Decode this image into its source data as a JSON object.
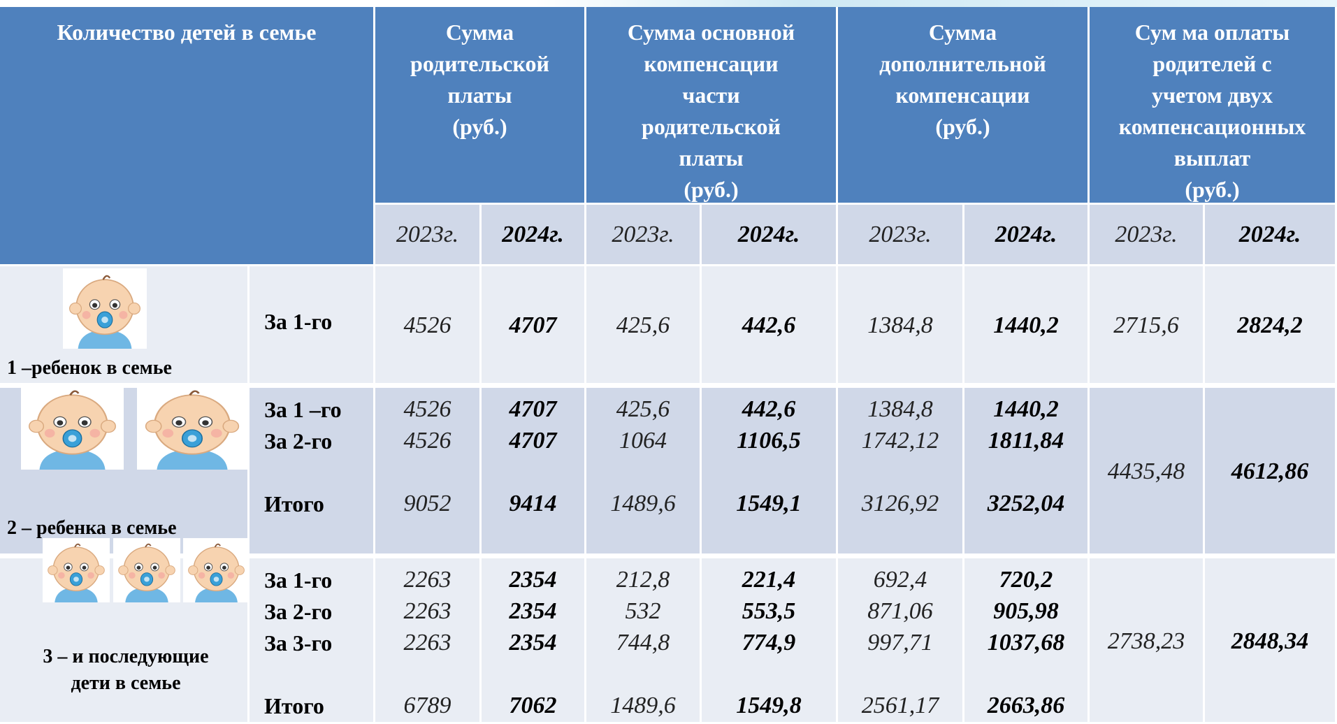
{
  "header": {
    "group_label": "Количество детей в семье",
    "columns": [
      "Сумма\nродительской\nплаты\n(руб.)",
      "Сумма основной\nкомпенсации\nчасти\nродительской\nплаты\n(руб.)",
      "Сумма\nдополнительной\nкомпенсации\n(руб.)",
      "Сум ма оплаты\nродителей с\nучетом двух\nкомпенсационных\nвыплат\n(руб.)"
    ],
    "years": [
      "2023г.",
      "2024г.",
      "2023г.",
      "2024г.",
      "2023г.",
      "2024г.",
      "2023г.",
      "2024г."
    ]
  },
  "groups": [
    {
      "label": "1 –ребенок в семье",
      "rows": [
        {
          "label": "За 1-го",
          "values": [
            "4526",
            "4707",
            "425,6",
            "442,6",
            "1384,8",
            "1440,2"
          ]
        }
      ],
      "totals": [
        "2715,6",
        "2824,2"
      ]
    },
    {
      "label": "2 – ребенка в семье",
      "rows": [
        {
          "label": "За 1 –го",
          "values": [
            "4526",
            "4707",
            "425,6",
            "442,6",
            "1384,8",
            "1440,2"
          ]
        },
        {
          "label": "За 2-го",
          "values": [
            "4526",
            "4707",
            "1064",
            "1106,5",
            "1742,12",
            "1811,84"
          ]
        },
        {
          "label": "Итого",
          "values": [
            "9052",
            "9414",
            "1489,6",
            "1549,1",
            "3126,92",
            "3252,04"
          ]
        }
      ],
      "totals": [
        "4435,48",
        "4612,86"
      ]
    },
    {
      "label": "3 – и последующие\nдети в семье",
      "rows": [
        {
          "label": "За 1-го",
          "values": [
            "2263",
            "2354",
            "212,8",
            "221,4",
            "692,4",
            "720,2"
          ]
        },
        {
          "label": "За 2-го",
          "values": [
            "2263",
            "2354",
            "532",
            "553,5",
            "871,06",
            "905,98"
          ]
        },
        {
          "label": "За 3-го",
          "values": [
            "2263",
            "2354",
            "744,8",
            "774,9",
            "997,71",
            "1037,68"
          ]
        },
        {
          "label": "Итого",
          "values": [
            "6789",
            "7062",
            "1489,6",
            "1549,8",
            "2561,17",
            "2663,86"
          ]
        }
      ],
      "totals": [
        "2738,23",
        "2848,34"
      ]
    }
  ]
}
